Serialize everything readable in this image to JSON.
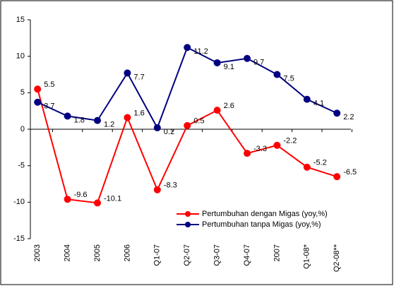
{
  "chart_data": {
    "type": "line",
    "categories": [
      "2003",
      "2004",
      "2005",
      "2006",
      "Q1-07",
      "Q2-07",
      "Q3-07",
      "Q4-07",
      "2007",
      "Q1-08*",
      "Q2-08**"
    ],
    "series": [
      {
        "name": "Pertumbuhan dengan Migas (yoy,%)",
        "color": "#ff0000",
        "values": [
          5.5,
          -9.6,
          -10.1,
          1.6,
          -8.3,
          0.5,
          2.6,
          -3.3,
          -2.2,
          -5.2,
          -6.5
        ]
      },
      {
        "name": "Pertumbuhan tanpa Migas (yoy,%)",
        "color": "#000080",
        "values": [
          3.7,
          1.8,
          1.2,
          7.7,
          0.2,
          11.2,
          9.1,
          9.7,
          7.5,
          4.1,
          2.2
        ]
      }
    ],
    "ylim": [
      -15,
      15
    ],
    "yticks": [
      -15,
      -10,
      -5,
      0,
      5,
      10,
      15
    ],
    "grid": false,
    "legend": "lower right"
  }
}
